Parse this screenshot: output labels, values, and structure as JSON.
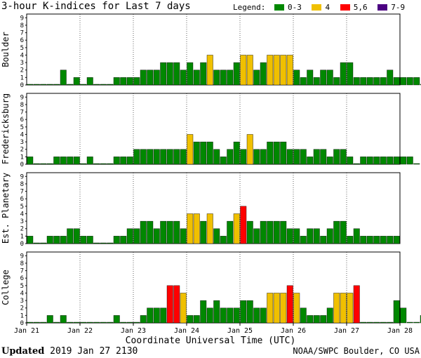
{
  "title": "3-hour K-indices for Last 7 days",
  "legend": {
    "label": "Legend:",
    "items": [
      {
        "label": "0-3",
        "color": "#008800"
      },
      {
        "label": "4",
        "color": "#F0C000"
      },
      {
        "label": "5,6",
        "color": "#FF0000"
      },
      {
        "label": "7-9",
        "color": "#4B0082"
      }
    ]
  },
  "footer": {
    "updated_label": "Updated",
    "updated_value": "2019 Jan 27 2130",
    "credit": "NOAA/SWPC Boulder, CO USA"
  },
  "chart_data": {
    "type": "bar",
    "xlabel": "Coordinate Universal Time (UTC)",
    "x_ticks": [
      "Jan 21",
      "Jan 22",
      "Jan 23",
      "Jan 24",
      "Jan 25",
      "Jan 26",
      "Jan 27",
      "Jan 28"
    ],
    "y_ticks": [
      "0",
      "1",
      "2",
      "3",
      "4",
      "5",
      "6",
      "7",
      "8",
      "9"
    ],
    "ylim": [
      0,
      9
    ],
    "interval_hours": 3,
    "color_rules": {
      "0-3": "#008800",
      "4": "#F0C000",
      "5,6": "#FF0000",
      "7-9": "#4B0082"
    },
    "panels": [
      {
        "name": "Boulder",
        "values": [
          0,
          0,
          0,
          0,
          0,
          2,
          0,
          1,
          0,
          1,
          0,
          0,
          0,
          1,
          1,
          1,
          1,
          2,
          2,
          2,
          3,
          3,
          3,
          2,
          3,
          2,
          3,
          4,
          2,
          2,
          2,
          3,
          4,
          4,
          2,
          3,
          4,
          4,
          4,
          4,
          2,
          1,
          2,
          1,
          2,
          2,
          1,
          3,
          3,
          1,
          1,
          1,
          1,
          1,
          2,
          1,
          1,
          1,
          1,
          0
        ]
      },
      {
        "name": "Fredericksburg",
        "values": [
          1,
          0,
          0,
          0,
          1,
          1,
          1,
          1,
          0,
          1,
          0,
          0,
          0,
          1,
          1,
          1,
          2,
          2,
          2,
          2,
          2,
          2,
          2,
          2,
          4,
          3,
          3,
          3,
          2,
          1,
          2,
          3,
          2,
          4,
          2,
          2,
          3,
          3,
          3,
          2,
          2,
          2,
          1,
          2,
          2,
          1,
          2,
          2,
          1,
          0,
          1,
          1,
          1,
          1,
          1,
          1,
          1,
          1,
          0
        ]
      },
      {
        "name": "Est. Planetary",
        "values": [
          1,
          0,
          0,
          1,
          1,
          1,
          2,
          2,
          1,
          1,
          0,
          0,
          0,
          1,
          1,
          2,
          2,
          3,
          3,
          2,
          3,
          3,
          3,
          2,
          4,
          4,
          3,
          4,
          2,
          1,
          3,
          4,
          5,
          3,
          2,
          3,
          3,
          3,
          3,
          2,
          2,
          1,
          2,
          2,
          1,
          2,
          3,
          3,
          1,
          2,
          1,
          1,
          1,
          1,
          1,
          1
        ]
      },
      {
        "name": "College",
        "values": [
          0,
          0,
          0,
          1,
          0,
          1,
          0,
          0,
          0,
          0,
          0,
          0,
          0,
          1,
          0,
          0,
          0,
          1,
          2,
          2,
          2,
          5,
          5,
          4,
          1,
          1,
          3,
          2,
          3,
          2,
          2,
          2,
          3,
          3,
          2,
          2,
          4,
          4,
          4,
          5,
          4,
          2,
          1,
          1,
          1,
          2,
          4,
          4,
          4,
          5,
          0,
          0,
          0,
          0,
          0,
          3,
          2,
          0,
          0,
          1,
          0
        ]
      }
    ]
  }
}
